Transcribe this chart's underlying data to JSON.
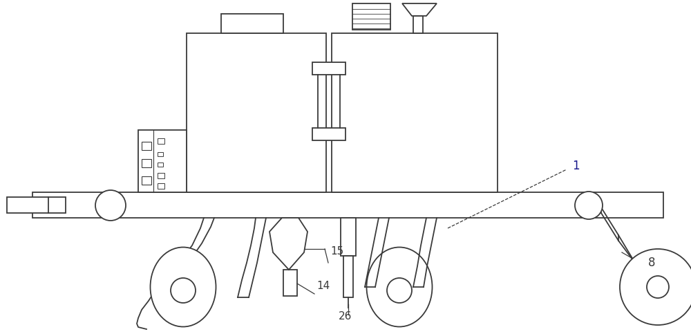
{
  "bg_color": "#ffffff",
  "line_color": "#3a3a3a",
  "lw": 1.3,
  "fig_width": 10.0,
  "fig_height": 4.83
}
